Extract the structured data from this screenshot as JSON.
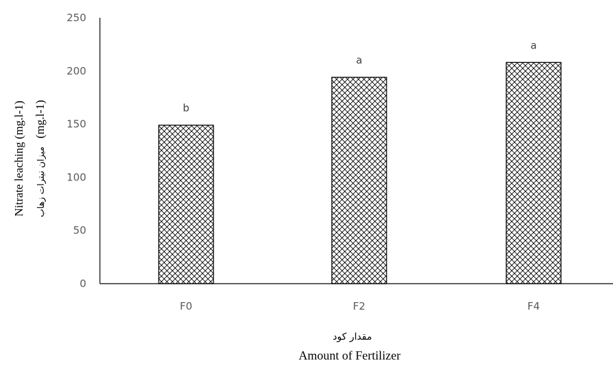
{
  "chart_data": {
    "type": "bar",
    "categories": [
      "F0",
      "F2",
      "F4"
    ],
    "values": [
      149,
      194,
      208
    ],
    "significance_labels": [
      "b",
      "a",
      "a"
    ],
    "ylim": [
      0,
      250
    ],
    "yticks": [
      0,
      50,
      100,
      150,
      200,
      250
    ],
    "xlabel": "Amount of Fertilizer",
    "xlabel_fa": "مقدار کود",
    "ylabel_line1": "Nitrate leaching (mg.l-1)",
    "ylabel_line2_fa": "میزان نیترات زهاب",
    "ylabel_line2_unit": "(mg.l-1)",
    "bar_pattern": "crosshatch",
    "bar_color": "#000000",
    "grid": false
  }
}
